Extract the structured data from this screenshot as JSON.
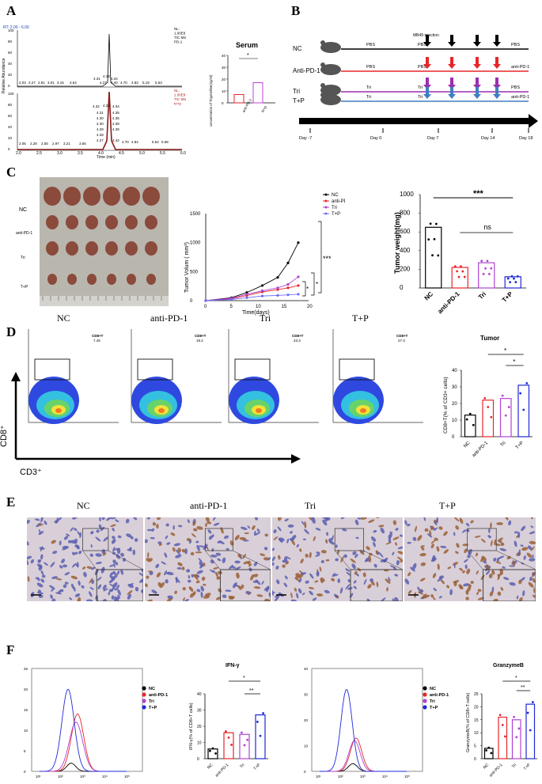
{
  "panels": {
    "A": "A",
    "B": "B",
    "C": "C",
    "D": "D",
    "E": "E",
    "F": "F"
  },
  "panelA": {
    "rt": "RT: 2.00 - 6.00",
    "yaxis": "Relative Abundance",
    "xaxis": "Time (min)",
    "top_info": [
      "NL:",
      "1.00E8",
      "TIC  MS",
      "PD-1"
    ],
    "bottom_info": [
      "NL:",
      "1.00E8",
      "TIC  MS",
      "tri+p"
    ],
    "top_peaks": [
      "2.03",
      "2.27",
      "2.81",
      "3.01",
      "3.15",
      "3.64",
      "4.27",
      "4.31",
      "4.33",
      "4.34",
      "4.40",
      "4.70",
      "4.83",
      "5.19",
      "5.63"
    ],
    "bottom_peaks": [
      "4.32",
      "4.33",
      "4.34",
      "4.31",
      "4.35",
      "4.30",
      "4.36",
      "4.30",
      "4.38",
      "4.29",
      "4.39",
      "4.28",
      "4.27",
      "4.42",
      "4.70",
      "4.84",
      "5.54",
      "5.68",
      "2.05",
      "2.28",
      "2.55",
      "2.97",
      "3.21",
      "3.65"
    ],
    "xticks": [
      "2.0",
      "2.5",
      "3.0",
      "3.5",
      "4.0",
      "4.5",
      "5.0",
      "5.5",
      "6.0"
    ],
    "yticks": [
      "100",
      "80",
      "60",
      "40",
      "20",
      "0"
    ],
    "serum": {
      "title": "Serum",
      "ylabel": "concentration of Trigonelline(ng/ml)",
      "yticks": [
        "40",
        "30",
        "20",
        "10",
        "0"
      ],
      "categories": [
        "anti-PD-1",
        "tri+p"
      ],
      "sig": "*"
    }
  },
  "panelB": {
    "groups": [
      "NC",
      "Anti-PD-1",
      "Tri",
      "T+P"
    ],
    "injection": "MB49 injection",
    "rows": [
      {
        "pre": "PBS",
        "mid": "PBS",
        "end": "PBS"
      },
      {
        "pre": "PBS",
        "mid": "PBS",
        "end": "anti-PD-1"
      },
      {
        "pre": "Tri",
        "mid": "Tri",
        "end": "PBS"
      },
      {
        "pre": "Tri",
        "mid": "Tri",
        "end": "anti-PD-1"
      }
    ],
    "days": [
      "Day -7",
      "Day 0",
      "Day 7",
      "Day 14",
      "Day 18"
    ],
    "colors": {
      "NC": "#000000",
      "Anti-PD-1": "#e8262a",
      "Tri": "#9b2fae",
      "T+P": "#3f7fc1"
    }
  },
  "panelC": {
    "photo_labels": [
      "NC",
      "anti-PD-1",
      "Tri",
      "T+P"
    ],
    "volume": {
      "ylabel": "Tumor Volum ( mm³)",
      "xlabel": "Time(days)",
      "yticks": [
        "1500",
        "1000",
        "500",
        "0"
      ],
      "xticks": [
        "0",
        "5",
        "10",
        "15",
        "20"
      ],
      "legend": [
        "NC",
        "anti-PD-1",
        "Tri",
        "T+P"
      ],
      "sig": [
        "***",
        "*",
        "*"
      ]
    },
    "weight": {
      "ylabel": "Tumor weight(mg)",
      "yticks": [
        "1000",
        "800",
        "600",
        "400",
        "200",
        "0"
      ],
      "categories": [
        "NC",
        "anti-PD-1",
        "Tri",
        "T+P"
      ],
      "sig": [
        "***",
        "ns"
      ]
    }
  },
  "panelD": {
    "titles": [
      "NC",
      "anti-PD-1",
      "Tri",
      "T+P"
    ],
    "gate_label": "CD8+T",
    "gate_values": [
      "7.45",
      "19.2",
      "23.3",
      "27.3"
    ],
    "xaxis": "CD3⁺",
    "yaxis": "CD8⁺",
    "bar": {
      "title": "Tumor",
      "ylabel": "CD8+T(% of CD3+ cells)",
      "yticks": [
        "40",
        "30",
        "20",
        "10",
        "0"
      ],
      "categories": [
        "NC",
        "anti-PD-1",
        "Tri",
        "T+P"
      ],
      "sig": [
        "*",
        "*"
      ]
    }
  },
  "panelE": {
    "titles": [
      "NC",
      "anti-PD-1",
      "Tri",
      "T+P"
    ]
  },
  "panelF": {
    "legend": [
      "NC",
      "anti-PD-1",
      "Tri",
      "T+P"
    ],
    "ifn": {
      "title": "IFN-γ",
      "ylabel": "IFN-γ(% of CD8+T cells)",
      "yticks": [
        "40",
        "30",
        "20",
        "10",
        "0"
      ],
      "categories": [
        "NC",
        "anti-PD-1",
        "Tri",
        "T+P"
      ],
      "sig": [
        "*",
        "**"
      ]
    },
    "gzm": {
      "title": "GranzymeB",
      "ylabel": "GranzymeB(% of CD8+T cells)",
      "yticks": [
        "25",
        "20",
        "15",
        "10",
        "5",
        "0"
      ],
      "categories": [
        "NC",
        "anti-PD-1",
        "Tri",
        "T+P"
      ],
      "sig": [
        "*",
        "**"
      ]
    },
    "hist1_yticks": [
      "25",
      "20",
      "15",
      "10",
      "5",
      "0"
    ],
    "hist2_yticks": [
      "40",
      "30",
      "20",
      "10",
      "0"
    ]
  },
  "colors": {
    "NC": "#000000",
    "anti-PD-1": "#e8262a",
    "Tri": "#b043d1",
    "T+P": "#1f29d9"
  },
  "chart_data": [
    {
      "type": "bar",
      "title": "Serum",
      "ylabel": "concentration of Trigonelline(ng/ml)",
      "categories": [
        "anti-PD-1",
        "tri+p"
      ],
      "values": [
        7,
        17
      ],
      "ylim": [
        0,
        40
      ]
    },
    {
      "type": "line",
      "xlabel": "Time(days)",
      "ylabel": "Tumor Volum ( mm³)",
      "x": [
        0,
        5,
        8,
        11,
        14,
        16,
        18
      ],
      "series": [
        {
          "name": "NC",
          "values": [
            0,
            50,
            140,
            260,
            400,
            650,
            1000
          ]
        },
        {
          "name": "anti-PD-1",
          "values": [
            0,
            30,
            90,
            150,
            190,
            220,
            260
          ]
        },
        {
          "name": "Tri",
          "values": [
            0,
            40,
            110,
            170,
            220,
            280,
            410
          ]
        },
        {
          "name": "T+P",
          "values": [
            0,
            20,
            50,
            80,
            90,
            100,
            110
          ]
        }
      ],
      "xlim": [
        0,
        20
      ],
      "ylim": [
        0,
        1500
      ]
    },
    {
      "type": "bar",
      "ylabel": "Tumor weight(mg)",
      "categories": [
        "NC",
        "anti-PD-1",
        "Tri",
        "T+P"
      ],
      "values": [
        650,
        220,
        270,
        120
      ],
      "ylim": [
        0,
        1000
      ]
    },
    {
      "type": "bar",
      "title": "Tumor",
      "ylabel": "CD8+T(% of CD3+ cells)",
      "categories": [
        "NC",
        "anti-PD-1",
        "Tri",
        "T+P"
      ],
      "values": [
        13,
        22,
        23,
        31
      ],
      "ylim": [
        0,
        40
      ]
    },
    {
      "type": "bar",
      "title": "IFN-γ",
      "ylabel": "IFN-γ(% of CD8+T cells)",
      "categories": [
        "NC",
        "anti-PD-1",
        "Tri",
        "T+P"
      ],
      "values": [
        6,
        16,
        15,
        27
      ],
      "ylim": [
        0,
        40
      ]
    },
    {
      "type": "bar",
      "title": "GranzymeB",
      "ylabel": "GranzymeB(% of CD8+T cells)",
      "categories": [
        "NC",
        "anti-PD-1",
        "Tri",
        "T+P"
      ],
      "values": [
        4,
        16,
        15,
        21
      ],
      "ylim": [
        0,
        25
      ]
    }
  ]
}
